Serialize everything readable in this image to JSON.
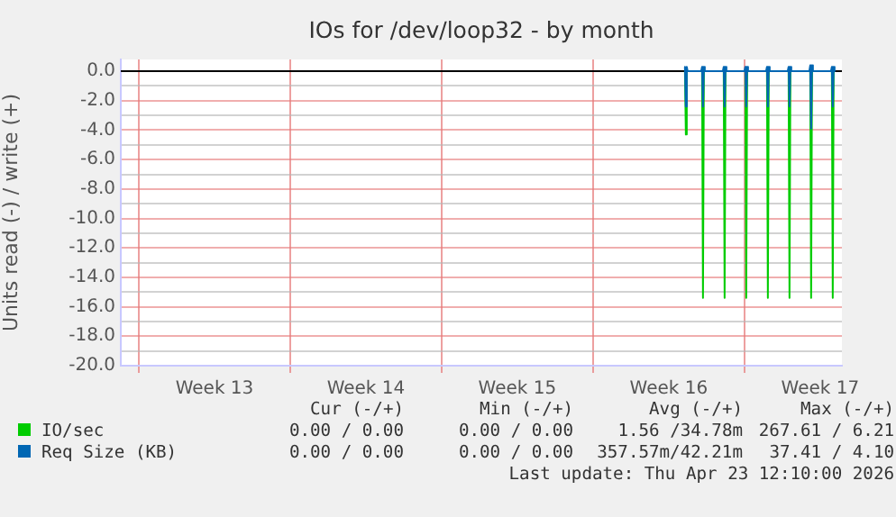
{
  "chart_data": {
    "type": "line",
    "title": "IOs for /dev/loop32 - by month",
    "ylabel": "Units read (-) / write (+)",
    "series": [
      {
        "name": "IO/sec",
        "color": "#00cc00",
        "x": [
          "2026-04-16T06:00",
          "2026-04-16T07:00",
          "2026-04-16T08:00",
          "2026-04-17T01:00",
          "2026-04-17T02:00",
          "2026-04-17T03:00",
          "2026-04-18T01:00",
          "2026-04-18T02:00",
          "2026-04-18T03:00",
          "2026-04-19T01:00",
          "2026-04-19T02:00",
          "2026-04-19T03:00",
          "2026-04-20T01:00",
          "2026-04-20T02:00",
          "2026-04-20T03:00",
          "2026-04-21T01:00",
          "2026-04-21T02:00",
          "2026-04-21T03:00",
          "2026-04-22T01:00",
          "2026-04-22T02:00",
          "2026-04-22T03:00",
          "2026-04-23T01:00",
          "2026-04-23T02:00",
          "2026-04-23T03:00"
        ],
        "values": [
          0,
          -4.3,
          0,
          0,
          -15.4,
          0,
          0,
          -15.4,
          0,
          0,
          -15.4,
          0,
          0,
          -15.4,
          0,
          0,
          -15.4,
          0,
          0,
          -15.4,
          0,
          0,
          -15.4,
          0
        ]
      },
      {
        "name": "Req Size (KB)",
        "color": "#0066b3",
        "x": [
          "2026-04-16T05:00",
          "2026-04-16T06:00",
          "2026-04-16T07:00",
          "2026-04-16T08:00",
          "2026-04-16T09:00",
          "2026-04-17T00:00",
          "2026-04-17T01:00",
          "2026-04-17T02:00",
          "2026-04-17T03:00",
          "2026-04-17T04:00",
          "2026-04-18T00:00",
          "2026-04-18T01:00",
          "2026-04-18T02:00",
          "2026-04-18T03:00",
          "2026-04-18T04:00",
          "2026-04-19T00:00",
          "2026-04-19T01:00",
          "2026-04-19T02:00",
          "2026-04-19T03:00",
          "2026-04-19T04:00",
          "2026-04-20T00:00",
          "2026-04-20T01:00",
          "2026-04-20T02:00",
          "2026-04-20T03:00",
          "2026-04-20T04:00",
          "2026-04-21T00:00",
          "2026-04-21T01:00",
          "2026-04-21T02:00",
          "2026-04-21T03:00",
          "2026-04-21T04:00",
          "2026-04-22T00:00",
          "2026-04-22T01:00",
          "2026-04-22T02:00",
          "2026-04-22T03:00",
          "2026-04-22T04:00",
          "2026-04-23T00:00",
          "2026-04-23T01:00",
          "2026-04-23T02:00",
          "2026-04-23T03:00",
          "2026-04-23T04:00"
        ],
        "values": [
          0,
          0.3,
          -2.4,
          0.3,
          0,
          0,
          0.3,
          -2.4,
          0.3,
          0,
          0,
          0.3,
          -2.4,
          0.3,
          0,
          0,
          0.3,
          -2.4,
          0.3,
          0,
          0,
          0.3,
          -2.4,
          0.3,
          0,
          0,
          0.3,
          -2.4,
          0.3,
          0,
          0,
          0.4,
          -3.9,
          0.4,
          0,
          0,
          0.3,
          -2.4,
          0.3,
          0
        ]
      }
    ],
    "xlim": [
      "2026-03-21T04:00",
      "2026-04-23T12:10"
    ],
    "xticks": [
      {
        "value": "2026-03-22",
        "label": null
      },
      {
        "value": "2026-03-25T12:00",
        "label": "Week 13"
      },
      {
        "value": "2026-03-29",
        "label": null
      },
      {
        "value": "2026-04-01T12:00",
        "label": "Week 14"
      },
      {
        "value": "2026-04-05",
        "label": null
      },
      {
        "value": "2026-04-08T12:00",
        "label": "Week 15"
      },
      {
        "value": "2026-04-12",
        "label": null
      },
      {
        "value": "2026-04-15T12:00",
        "label": "Week 16"
      },
      {
        "value": "2026-04-19",
        "label": null
      },
      {
        "value": "2026-04-22T12:00",
        "label": "Week 17"
      }
    ],
    "ylim": [
      -20,
      0.8
    ],
    "yticks": [
      {
        "value": -20,
        "label": "-20.0"
      },
      {
        "value": -19,
        "label": null
      },
      {
        "value": -18,
        "label": "-18.0"
      },
      {
        "value": -17,
        "label": null
      },
      {
        "value": -16,
        "label": "-16.0"
      },
      {
        "value": -15,
        "label": null
      },
      {
        "value": -14,
        "label": "-14.0"
      },
      {
        "value": -13,
        "label": null
      },
      {
        "value": -12,
        "label": "-12.0"
      },
      {
        "value": -11,
        "label": null
      },
      {
        "value": -10,
        "label": "-10.0"
      },
      {
        "value": -9,
        "label": null
      },
      {
        "value": -8,
        "label": "-8.0"
      },
      {
        "value": -7,
        "label": null
      },
      {
        "value": -6,
        "label": "-6.0"
      },
      {
        "value": -5,
        "label": null
      },
      {
        "value": -4,
        "label": "-4.0"
      },
      {
        "value": -3,
        "label": null
      },
      {
        "value": -2,
        "label": "-2.0"
      },
      {
        "value": -1,
        "label": null
      },
      {
        "value": 0,
        "label": "0.0"
      }
    ],
    "ref_lines": [
      {
        "axis": "y",
        "value": 0,
        "color": "#000000"
      }
    ],
    "grid": true,
    "legend": "bottom",
    "marker": "none",
    "line_style": "solid",
    "annotations": [
      "Cur (-/+)",
      "Min (-/+)",
      "Avg (-/+)",
      "Max (-/+)",
      "0.00 / 0.00",
      "0.00 / 0.00",
      "1.56 /34.78m",
      "267.61 / 6.21",
      "0.00 / 0.00",
      "0.00 / 0.00",
      "357.57m/42.21m",
      "37.41 / 4.10",
      "Last update: Thu Apr 23 12:10:00 2026"
    ]
  }
}
